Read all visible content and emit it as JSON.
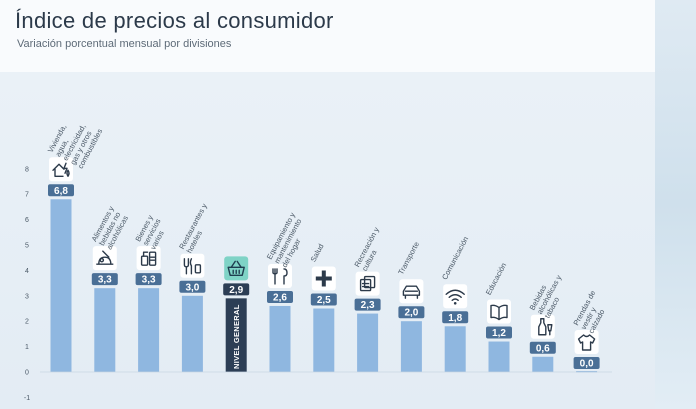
{
  "chart_data": {
    "type": "bar",
    "title": "Índice de precios al consumidor",
    "subtitle": "Variación porcentual mensual por divisiones",
    "ylim": [
      -1,
      8
    ],
    "yticks": [
      8,
      7,
      6,
      5,
      4,
      3,
      2,
      1,
      0,
      -1
    ],
    "categories": [
      "Vivienda, agua, electricidad, gas y otros combustibles",
      "Alimentos y bebidas no alcohólicas",
      "Bienes y servicios varios",
      "Restaurantes y hoteles",
      "NIVEL GENERAL",
      "Equipamiento y mantenimiento del hogar",
      "Salud",
      "Recreación y cultura",
      "Transporte",
      "Comunicación",
      "Educación",
      "Bebidas alcohólicas y tabaco",
      "Prendas de vestir y calzado"
    ],
    "values": [
      6.8,
      3.3,
      3.3,
      3.0,
      2.9,
      2.6,
      2.5,
      2.3,
      2.0,
      1.8,
      1.2,
      0.6,
      0.0
    ],
    "value_labels": [
      "6,8",
      "3,3",
      "3,3",
      "3,0",
      "2,9",
      "2,6",
      "2,5",
      "2,3",
      "2,0",
      "1,8",
      "1,2",
      "0,6",
      "0,0"
    ],
    "icons": [
      "house-utilities-icon",
      "food-icon",
      "personal-care-icon",
      "restaurant-icon",
      "basket-icon",
      "household-tools-icon",
      "health-cross-icon",
      "recreation-icon",
      "car-icon",
      "wifi-icon",
      "book-icon",
      "bottle-icon",
      "tshirt-icon"
    ],
    "highlight_category": "NIVEL GENERAL",
    "colors": {
      "bar": "#8fb7e0",
      "label_bg": "#4a6f96",
      "highlight": "#2c3e55",
      "highlight_icon_bg": "#7fd3c6"
    },
    "grid": false,
    "legend": "none"
  }
}
